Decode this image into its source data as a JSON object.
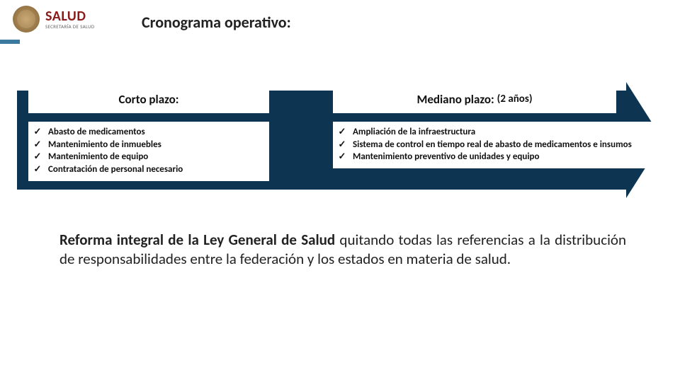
{
  "header": {
    "brand": "SALUD",
    "brand_sub": "SECRETARÍA DE SALUD",
    "title": "Cronograma operativo:"
  },
  "colors": {
    "arrow_bg": "#0d3552",
    "accent": "#3b7a9e",
    "brand": "#8b1a1a",
    "white": "#ffffff",
    "text": "#222222"
  },
  "arrow": {
    "corto": {
      "heading": "Corto plazo:",
      "items": [
        "Abasto de medicamentos",
        "Mantenimiento de inmuebles",
        "Mantenimiento de equipo",
        "Contratación de personal necesario"
      ]
    },
    "mediano": {
      "heading": "Mediano plazo:",
      "heading_suffix": "(2 años)",
      "items": [
        "Ampliación de la infraestructura",
        "Sistema de control en tiempo real de abasto de medicamentos e insumos",
        "Mantenimiento preventivo de unidades y equipo"
      ]
    }
  },
  "body": {
    "lead": "Reforma integral de la Ley General de Salud",
    "rest": " quitando todas las referencias a la distribución de responsabilidades entre la federación y los estados en materia de salud."
  },
  "glyphs": {
    "check": "✓"
  }
}
